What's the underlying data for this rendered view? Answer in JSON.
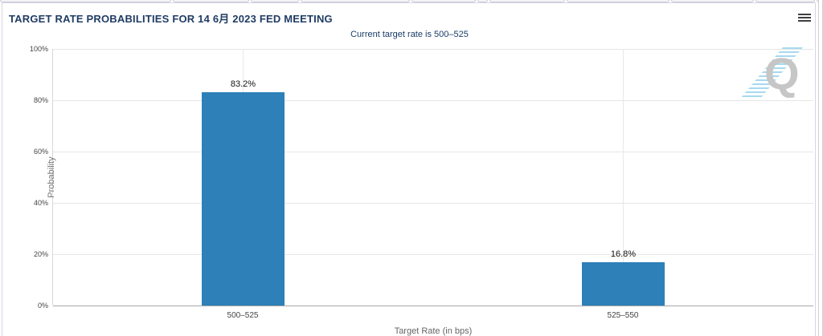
{
  "panel": {
    "title": "TARGET RATE PROBABILITIES FOR 14 6月 2023 FED MEETING",
    "subtitle": "Current target rate is 500–525"
  },
  "chart_data": {
    "type": "bar",
    "title": "TARGET RATE PROBABILITIES FOR 14 6月 2023 FED MEETING",
    "subtitle": "Current target rate is 500–525",
    "categories": [
      "500–525",
      "525–550"
    ],
    "values": [
      83.2,
      16.8
    ],
    "value_labels": [
      "83.2%",
      "16.8%"
    ],
    "xlabel": "Target Rate (in bps)",
    "ylabel": "Probability",
    "ylim": [
      0,
      100
    ],
    "yticks": [
      "0%",
      "20%",
      "40%",
      "60%",
      "80%",
      "100%"
    ],
    "grid": true,
    "legend": "none",
    "bar_color": "#2d80b8"
  },
  "icons": {
    "menu": "hamburger-icon",
    "watermark": "Q"
  }
}
